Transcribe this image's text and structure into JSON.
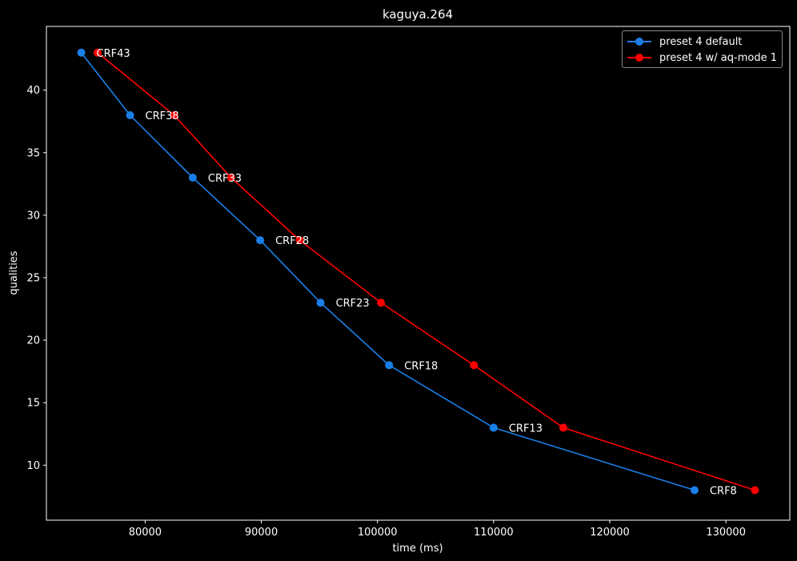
{
  "chart_data": {
    "type": "line",
    "title": "kaguya.264",
    "xlabel": "time (ms)",
    "ylabel": "qualities",
    "xlim": [
      71500,
      135500
    ],
    "ylim": [
      5.6,
      45.1
    ],
    "xticks": [
      80000,
      90000,
      100000,
      110000,
      120000,
      130000
    ],
    "yticks": [
      10,
      15,
      20,
      25,
      30,
      35,
      40
    ],
    "grid": false,
    "legend_position": "top-right",
    "series": [
      {
        "name": "preset 4 default",
        "color": "#1a7fe8",
        "x": [
          74500,
          78700,
          84100,
          89900,
          95100,
          101000,
          110000,
          127300
        ],
        "y": [
          43,
          38,
          33,
          28,
          23,
          18,
          13,
          8
        ]
      },
      {
        "name": "preset 4 w/ aq-mode 1",
        "color": "#ff0000",
        "x": [
          75900,
          82500,
          87400,
          93300,
          100300,
          108300,
          116000,
          132500
        ],
        "y": [
          43,
          38,
          33,
          28,
          23,
          18,
          13,
          8
        ]
      }
    ],
    "annotations": [
      {
        "text": "CRF43",
        "x": 74500,
        "y": 43
      },
      {
        "text": "CRF38",
        "x": 78700,
        "y": 38
      },
      {
        "text": "CRF33",
        "x": 84100,
        "y": 33
      },
      {
        "text": "CRF28",
        "x": 89900,
        "y": 28
      },
      {
        "text": "CRF23",
        "x": 95100,
        "y": 23
      },
      {
        "text": "CRF18",
        "x": 101000,
        "y": 18
      },
      {
        "text": "CRF13",
        "x": 110000,
        "y": 13
      },
      {
        "text": "CRF8",
        "x": 127300,
        "y": 8
      }
    ]
  }
}
